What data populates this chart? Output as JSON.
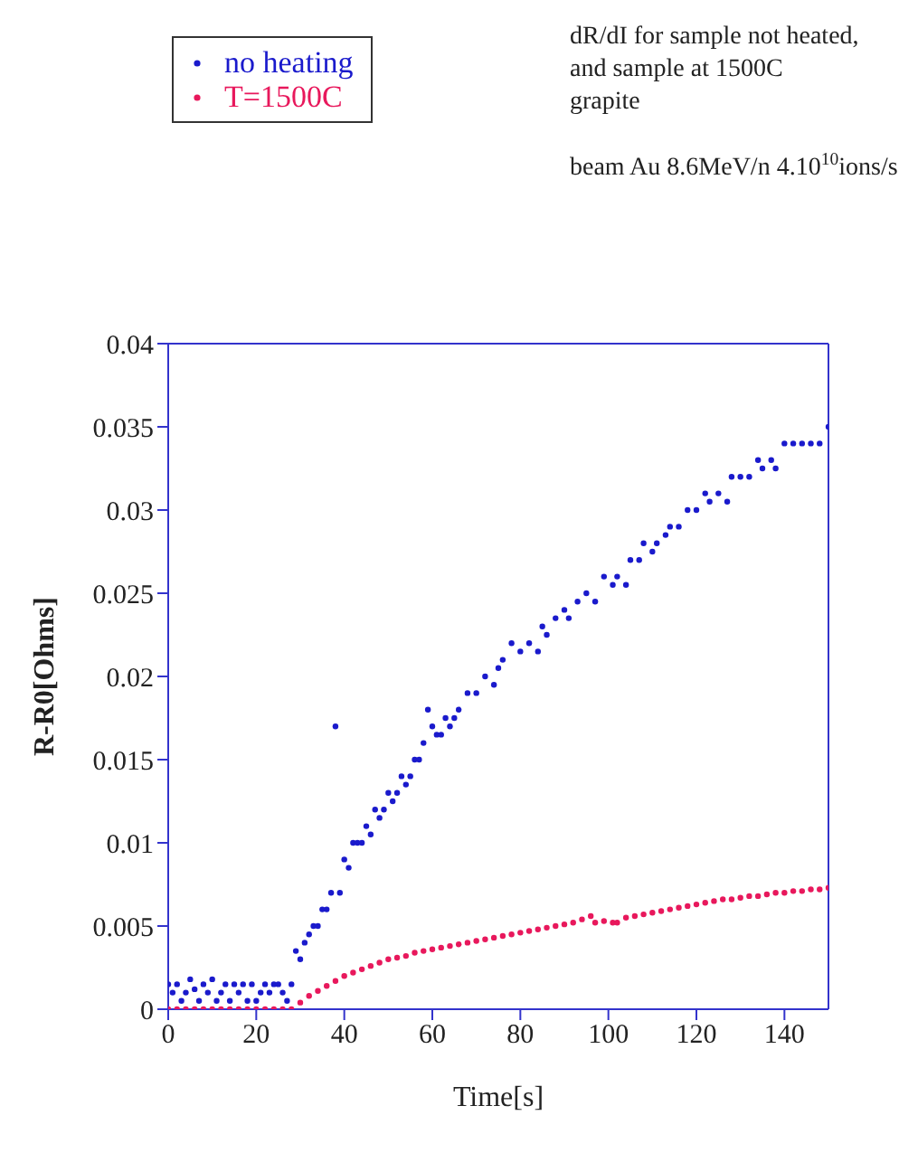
{
  "chart_data": {
    "type": "scatter",
    "xlabel": "Time[s]",
    "ylabel": "R-R0[Ohms]",
    "annotations": [
      "dR/dI for sample not heated,",
      "and sample at 1500C",
      "grapite",
      "beam Au 8.6MeV/n  4.10$^{10}$ions/s"
    ],
    "xlim": [
      0,
      150
    ],
    "xticks": [
      0,
      20,
      40,
      60,
      80,
      100,
      120,
      140
    ],
    "ylim": [
      0,
      0.04
    ],
    "yticks": [
      0,
      0.005,
      0.01,
      0.015,
      0.02,
      0.025,
      0.03,
      0.035,
      0.04
    ],
    "legend": "top left",
    "marker": "circle",
    "grid": false,
    "series": [
      {
        "name": "no heating",
        "color": "#1a1acc",
        "x": [
          0,
          1,
          2,
          3,
          4,
          5,
          6,
          7,
          8,
          9,
          10,
          11,
          12,
          13,
          14,
          15,
          16,
          17,
          18,
          19,
          20,
          21,
          22,
          23,
          24,
          25,
          26,
          27,
          28,
          29,
          30,
          31,
          32,
          33,
          34,
          35,
          36,
          37,
          38,
          39,
          40,
          41,
          42,
          43,
          44,
          45,
          46,
          47,
          48,
          49,
          50,
          51,
          52,
          53,
          54,
          55,
          56,
          57,
          58,
          59,
          60,
          61,
          62,
          63,
          64,
          65,
          66,
          68,
          70,
          72,
          74,
          75,
          76,
          78,
          80,
          82,
          84,
          85,
          86,
          88,
          90,
          91,
          93,
          95,
          97,
          99,
          101,
          102,
          104,
          105,
          107,
          108,
          110,
          111,
          113,
          114,
          116,
          118,
          120,
          122,
          123,
          125,
          127,
          128,
          130,
          132,
          134,
          135,
          137,
          138,
          140,
          142,
          144,
          146,
          148,
          150
        ],
        "values": [
          0.0015,
          0.001,
          0.0015,
          0.0005,
          0.001,
          0.0018,
          0.0012,
          0.0005,
          0.0015,
          0.001,
          0.0018,
          0.0005,
          0.001,
          0.0015,
          0.0005,
          0.0015,
          0.001,
          0.0015,
          0.0005,
          0.0015,
          0.0005,
          0.001,
          0.0015,
          0.001,
          0.0015,
          0.0015,
          0.001,
          0.0005,
          0.0015,
          0.0035,
          0.003,
          0.004,
          0.0045,
          0.005,
          0.005,
          0.006,
          0.006,
          0.007,
          0.017,
          0.007,
          0.009,
          0.0085,
          0.01,
          0.01,
          0.01,
          0.011,
          0.0105,
          0.012,
          0.0115,
          0.012,
          0.013,
          0.0125,
          0.013,
          0.014,
          0.0135,
          0.014,
          0.015,
          0.015,
          0.016,
          0.018,
          0.017,
          0.0165,
          0.0165,
          0.0175,
          0.017,
          0.0175,
          0.018,
          0.019,
          0.019,
          0.02,
          0.0195,
          0.0205,
          0.021,
          0.022,
          0.0215,
          0.022,
          0.0215,
          0.023,
          0.0225,
          0.0235,
          0.024,
          0.0235,
          0.0245,
          0.025,
          0.0245,
          0.026,
          0.0255,
          0.026,
          0.0255,
          0.027,
          0.027,
          0.028,
          0.0275,
          0.028,
          0.0285,
          0.029,
          0.029,
          0.03,
          0.03,
          0.031,
          0.0305,
          0.031,
          0.0305,
          0.032,
          0.032,
          0.032,
          0.033,
          0.0325,
          0.033,
          0.0325,
          0.034,
          0.034,
          0.034,
          0.034,
          0.034,
          0.035
        ]
      },
      {
        "name": "T=1500C",
        "color": "#e8185c",
        "x": [
          0,
          2,
          4,
          6,
          8,
          10,
          12,
          14,
          16,
          18,
          20,
          22,
          24,
          26,
          28,
          30,
          32,
          34,
          36,
          38,
          40,
          42,
          44,
          46,
          48,
          50,
          52,
          54,
          56,
          58,
          60,
          62,
          64,
          66,
          68,
          70,
          72,
          74,
          76,
          78,
          80,
          82,
          84,
          86,
          88,
          90,
          92,
          94,
          96,
          97,
          99,
          101,
          102,
          104,
          106,
          108,
          110,
          112,
          114,
          116,
          118,
          120,
          122,
          124,
          126,
          128,
          130,
          132,
          134,
          136,
          138,
          140,
          142,
          144,
          146,
          148,
          150
        ],
        "values": [
          0,
          0,
          0,
          0,
          0,
          0,
          0,
          0,
          0,
          0,
          0,
          0,
          0,
          0,
          0,
          0.0004,
          0.0008,
          0.0011,
          0.0014,
          0.0017,
          0.002,
          0.0022,
          0.0024,
          0.0026,
          0.0028,
          0.003,
          0.0031,
          0.0032,
          0.0034,
          0.0035,
          0.0036,
          0.0037,
          0.0038,
          0.0039,
          0.004,
          0.0041,
          0.0042,
          0.0043,
          0.0044,
          0.0045,
          0.0046,
          0.0047,
          0.0048,
          0.0049,
          0.005,
          0.0051,
          0.0052,
          0.0054,
          0.0056,
          0.0052,
          0.0053,
          0.0052,
          0.0052,
          0.0055,
          0.0056,
          0.0057,
          0.0058,
          0.0059,
          0.006,
          0.0061,
          0.0062,
          0.0063,
          0.0064,
          0.0065,
          0.0066,
          0.0066,
          0.0067,
          0.0068,
          0.0068,
          0.0069,
          0.007,
          0.007,
          0.0071,
          0.0071,
          0.0072,
          0.0072,
          0.0073
        ]
      }
    ]
  }
}
